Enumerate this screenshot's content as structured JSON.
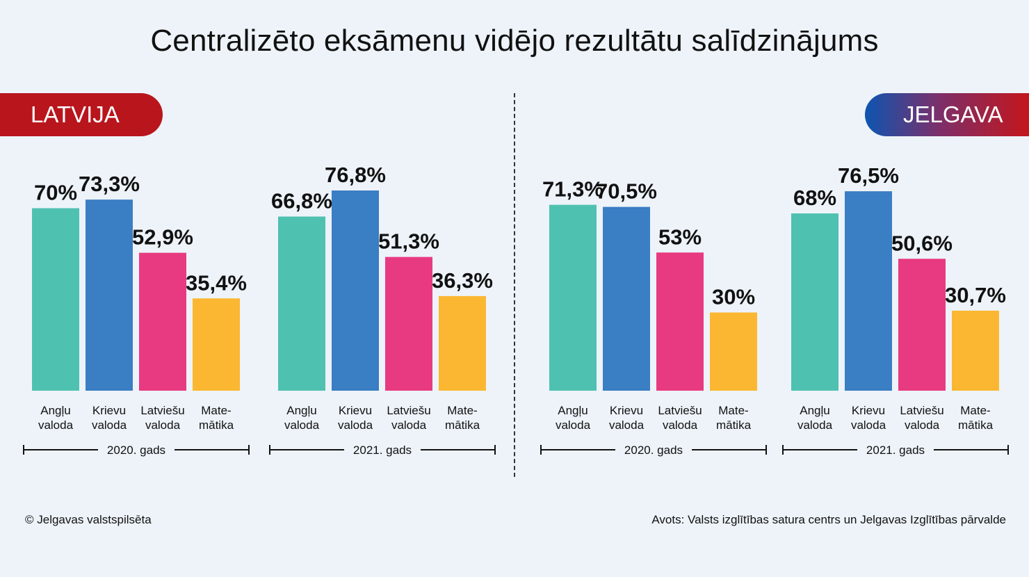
{
  "title": "Centralizēto eksāmenu vidējo rezultātu salīdzinājums",
  "regions": {
    "left": "LATVIJA",
    "right": "JELGAVA"
  },
  "footer": {
    "copyright": "© Jelgavas valstspilsēta",
    "source": "Avots: Valsts izglītības satura centrs un Jelgavas Izglītības pārvalde"
  },
  "chart_data": {
    "type": "bar",
    "unit": "%",
    "ylim": [
      0,
      100
    ],
    "colors": {
      "Angļu valoda": "#4fc1b0",
      "Krievu valoda": "#3a7ec3",
      "Latviešu valoda": "#e83a80",
      "Matemātika": "#fbb731"
    },
    "category_labels": [
      [
        "Angļu",
        "valoda"
      ],
      [
        "Krievu",
        "valoda"
      ],
      [
        "Latviešu",
        "valoda"
      ],
      [
        "Mate-",
        "mātika"
      ]
    ],
    "categories": [
      "Angļu valoda",
      "Krievu valoda",
      "Latviešu valoda",
      "Matemātika"
    ],
    "groups": [
      {
        "region": "LATVIJA",
        "year": "2020. gads",
        "values": [
          70,
          73.3,
          52.9,
          35.4
        ],
        "labels": [
          "70%",
          "73,3%",
          "52,9%",
          "35,4%"
        ]
      },
      {
        "region": "LATVIJA",
        "year": "2021. gads",
        "values": [
          66.8,
          76.8,
          51.3,
          36.3
        ],
        "labels": [
          "66,8%",
          "76,8%",
          "51,3%",
          "36,3%"
        ]
      },
      {
        "region": "JELGAVA",
        "year": "2020. gads",
        "values": [
          71.3,
          70.5,
          53,
          30
        ],
        "labels": [
          "71,3%",
          "70,5%",
          "53%",
          "30%"
        ]
      },
      {
        "region": "JELGAVA",
        "year": "2021. gads",
        "values": [
          68,
          76.5,
          50.6,
          30.7
        ],
        "labels": [
          "68%",
          "76,5%",
          "50,6%",
          "30,7%"
        ]
      }
    ]
  }
}
